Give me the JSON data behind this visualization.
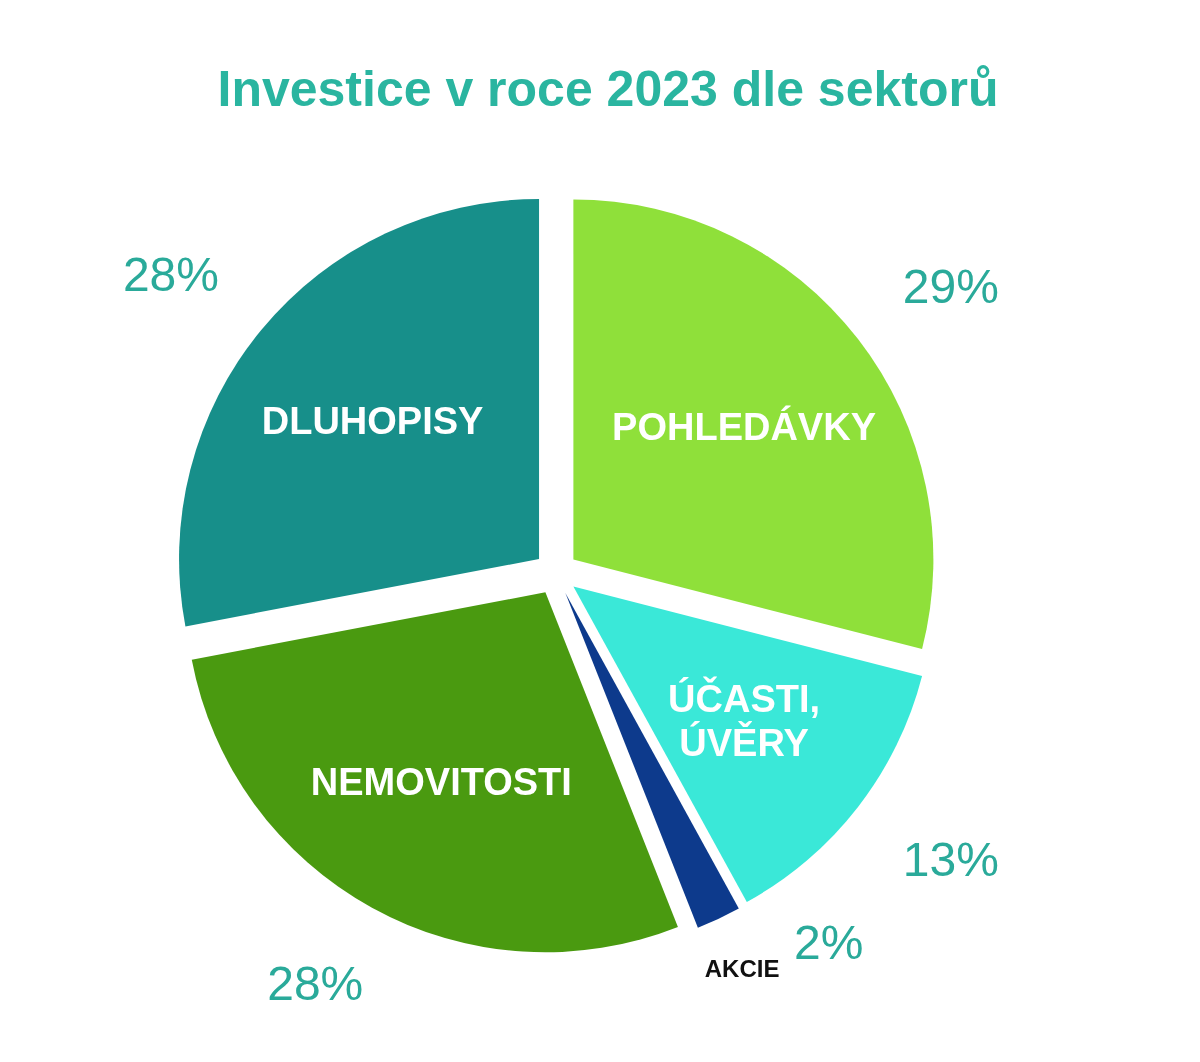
{
  "chart_data": {
    "type": "pie",
    "title": "Investice v roce 2023 dle sektorů",
    "categories": [
      "POHLEDÁVKY",
      "ÚČASTI, ÚVĚRY",
      "AKCIE",
      "NEMOVITOSTI",
      "DLUHOPISY"
    ],
    "values": [
      29,
      13,
      2,
      28,
      28
    ],
    "colors": [
      "#8fe03a",
      "#3ae8d8",
      "#0d3a8c",
      "#4a9a10",
      "#178f8a"
    ],
    "value_labels": [
      "29%",
      "13%",
      "2%",
      "28%",
      "28%"
    ]
  }
}
